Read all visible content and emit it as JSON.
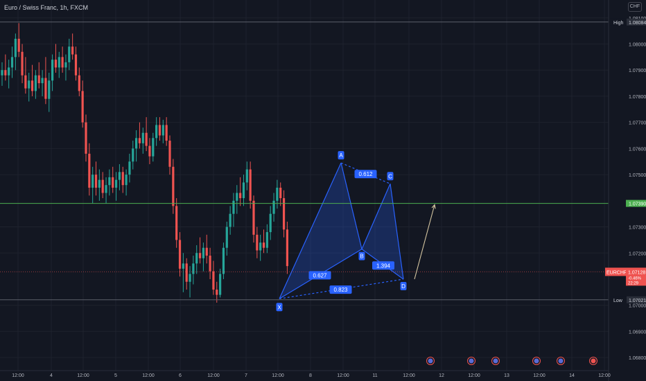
{
  "header": {
    "symbol_title": "Euro / Swiss Franc, 1h, FXCM",
    "currency_button": "CHF"
  },
  "colors": {
    "background": "#131722",
    "grid": "#1e222d",
    "up": "#26a69a",
    "down": "#ef5350",
    "pattern_fill": "#2962ff",
    "pattern_line": "#2962ff",
    "label_bg": "#2962ff",
    "horizontal_level": "#4caf50",
    "projection_arrow": "#d4c5a0",
    "axis_text": "#b2b5be"
  },
  "price_axis": {
    "ticks": [
      "1.08100",
      "1.08000",
      "1.07900",
      "1.07800",
      "1.07700",
      "1.07600",
      "1.07500",
      "1.07300",
      "1.07200",
      "1.07000",
      "1.06900",
      "1.06800"
    ],
    "high_label": "High",
    "high_value": "1.08084",
    "low_label": "Low",
    "low_value": "1.07021",
    "level_value": "1.07390",
    "current_symbol": "EURCHF",
    "current_price": "1.07128",
    "current_change": "-0.46%",
    "countdown": "22:29"
  },
  "time_axis": {
    "labels": [
      "12:00",
      "4",
      "12:00",
      "5",
      "12:00",
      "6",
      "12:00",
      "7",
      "12:00",
      "8",
      "12:00",
      "11",
      "12:00",
      "12",
      "12:00",
      "13",
      "12:00",
      "14",
      "12:00"
    ]
  },
  "pattern": {
    "points": [
      {
        "label": "X",
        "price": 1.07025
      },
      {
        "label": "A",
        "price": 1.07545
      },
      {
        "label": "B",
        "price": 1.07215
      },
      {
        "label": "C",
        "price": 1.07465
      },
      {
        "label": "D",
        "price": 1.071
      }
    ],
    "ratios": {
      "xb": "0.627",
      "ac": "0.612",
      "bd": "1.394",
      "xd": "0.823"
    }
  },
  "events": [
    {
      "type": "economic",
      "icon": "flag-icon"
    },
    {
      "type": "economic",
      "icon": "flag-icon"
    },
    {
      "type": "economic",
      "icon": "flag-icon"
    },
    {
      "type": "economic",
      "icon": "flag-icon"
    },
    {
      "type": "economic",
      "icon": "flag-icon"
    },
    {
      "type": "economic",
      "icon": "alert-icon"
    }
  ],
  "chart_data": {
    "type": "candlestick",
    "title": "Euro / Swiss Franc, 1h, FXCM",
    "ylim": [
      1.0675,
      1.0811
    ],
    "high": 1.08084,
    "low": 1.07021,
    "horizontal_level": 1.0739,
    "last_price": 1.07128,
    "pattern": "harmonic XABCD",
    "candles": [
      [
        1.0788,
        1.0793,
        1.0784,
        1.079
      ],
      [
        1.079,
        1.0796,
        1.0786,
        1.0788
      ],
      [
        1.0788,
        1.0794,
        1.0783,
        1.0791
      ],
      [
        1.0791,
        1.0799,
        1.0787,
        1.0795
      ],
      [
        1.0795,
        1.0804,
        1.079,
        1.0802
      ],
      [
        1.0802,
        1.0808,
        1.0795,
        1.0797
      ],
      [
        1.0797,
        1.08,
        1.0785,
        1.0788
      ],
      [
        1.0788,
        1.0795,
        1.0781,
        1.0783
      ],
      [
        1.0783,
        1.0789,
        1.0778,
        1.0786
      ],
      [
        1.0786,
        1.0792,
        1.078,
        1.0782
      ],
      [
        1.0782,
        1.079,
        1.0779,
        1.0788
      ],
      [
        1.0788,
        1.0793,
        1.0783,
        1.0785
      ],
      [
        1.0785,
        1.079,
        1.078,
        1.0787
      ],
      [
        1.0787,
        1.0795,
        1.0777,
        1.0779
      ],
      [
        1.0779,
        1.0789,
        1.0774,
        1.0786
      ],
      [
        1.0786,
        1.0796,
        1.0782,
        1.0794
      ],
      [
        1.0794,
        1.08,
        1.0789,
        1.0791
      ],
      [
        1.0791,
        1.0797,
        1.0787,
        1.0795
      ],
      [
        1.0795,
        1.0799,
        1.0789,
        1.0791
      ],
      [
        1.0791,
        1.0796,
        1.0786,
        1.0793
      ],
      [
        1.0793,
        1.0802,
        1.079,
        1.0799
      ],
      [
        1.0799,
        1.0804,
        1.0794,
        1.0796
      ],
      [
        1.0796,
        1.0799,
        1.0786,
        1.0788
      ],
      [
        1.0788,
        1.0791,
        1.078,
        1.0782
      ],
      [
        1.0782,
        1.0786,
        1.0768,
        1.077
      ],
      [
        1.077,
        1.0773,
        1.0755,
        1.0758
      ],
      [
        1.0758,
        1.0762,
        1.0742,
        1.0745
      ],
      [
        1.0745,
        1.0753,
        1.0739,
        1.075
      ],
      [
        1.075,
        1.0755,
        1.0742,
        1.0745
      ],
      [
        1.0745,
        1.0752,
        1.074,
        1.0748
      ],
      [
        1.0748,
        1.0751,
        1.0741,
        1.0743
      ],
      [
        1.0743,
        1.0749,
        1.0739,
        1.0746
      ],
      [
        1.0746,
        1.0752,
        1.0742,
        1.0749
      ],
      [
        1.0749,
        1.0753,
        1.0743,
        1.0745
      ],
      [
        1.0745,
        1.0751,
        1.074,
        1.0748
      ],
      [
        1.0748,
        1.0754,
        1.0744,
        1.0751
      ],
      [
        1.0751,
        1.0753,
        1.0743,
        1.0746
      ],
      [
        1.0746,
        1.0752,
        1.0742,
        1.075
      ],
      [
        1.075,
        1.0758,
        1.0747,
        1.0755
      ],
      [
        1.0755,
        1.0763,
        1.0752,
        1.076
      ],
      [
        1.076,
        1.0767,
        1.0755,
        1.0764
      ],
      [
        1.0764,
        1.077,
        1.076,
        1.0762
      ],
      [
        1.0762,
        1.0768,
        1.0758,
        1.0766
      ],
      [
        1.0766,
        1.0772,
        1.0759,
        1.0761
      ],
      [
        1.0761,
        1.0764,
        1.0754,
        1.0757
      ],
      [
        1.0757,
        1.0766,
        1.0755,
        1.0764
      ],
      [
        1.0764,
        1.0772,
        1.0761,
        1.0769
      ],
      [
        1.0769,
        1.0772,
        1.0763,
        1.0765
      ],
      [
        1.0765,
        1.0771,
        1.0762,
        1.0769
      ],
      [
        1.0769,
        1.0772,
        1.0761,
        1.0763
      ],
      [
        1.0763,
        1.0765,
        1.075,
        1.0753
      ],
      [
        1.0753,
        1.0756,
        1.0735,
        1.0738
      ],
      [
        1.0738,
        1.0741,
        1.0722,
        1.0725
      ],
      [
        1.0725,
        1.0728,
        1.0711,
        1.0714
      ],
      [
        1.0714,
        1.072,
        1.0705,
        1.0716
      ],
      [
        1.0716,
        1.0718,
        1.0706,
        1.0709
      ],
      [
        1.0709,
        1.0715,
        1.0703,
        1.0712
      ],
      [
        1.0712,
        1.0719,
        1.0708,
        1.0716
      ],
      [
        1.0716,
        1.0723,
        1.0712,
        1.072
      ],
      [
        1.072,
        1.0726,
        1.0716,
        1.0718
      ],
      [
        1.0718,
        1.0724,
        1.0713,
        1.0722
      ],
      [
        1.0722,
        1.0727,
        1.0716,
        1.0719
      ],
      [
        1.0719,
        1.0722,
        1.071,
        1.0713
      ],
      [
        1.0713,
        1.0717,
        1.0704,
        1.0706
      ],
      [
        1.0706,
        1.0709,
        1.0701,
        1.0704
      ],
      [
        1.0704,
        1.0714,
        1.0703,
        1.0712
      ],
      [
        1.0712,
        1.0724,
        1.071,
        1.0722
      ],
      [
        1.0722,
        1.0732,
        1.0719,
        1.073
      ],
      [
        1.073,
        1.0738,
        1.0727,
        1.0735
      ],
      [
        1.0735,
        1.0743,
        1.073,
        1.074
      ],
      [
        1.074,
        1.0746,
        1.0735,
        1.0743
      ],
      [
        1.0743,
        1.0749,
        1.0738,
        1.0741
      ],
      [
        1.0741,
        1.075,
        1.0738,
        1.0747
      ],
      [
        1.0747,
        1.0755,
        1.0744,
        1.0752
      ],
      [
        1.0752,
        1.0755,
        1.0737,
        1.074
      ],
      [
        1.074,
        1.0742,
        1.0724,
        1.0727
      ],
      [
        1.0727,
        1.073,
        1.0718,
        1.0721
      ],
      [
        1.0721,
        1.0727,
        1.0717,
        1.0724
      ],
      [
        1.0724,
        1.0729,
        1.072,
        1.0722
      ],
      [
        1.0722,
        1.0731,
        1.072,
        1.0728
      ],
      [
        1.0728,
        1.0738,
        1.0725,
        1.0735
      ],
      [
        1.0735,
        1.0743,
        1.0732,
        1.074
      ],
      [
        1.074,
        1.0748,
        1.0737,
        1.0745
      ],
      [
        1.0745,
        1.0747,
        1.0738,
        1.0741
      ],
      [
        1.0741,
        1.0744,
        1.0726,
        1.0729
      ],
      [
        1.0729,
        1.0732,
        1.0712,
        1.0715
      ]
    ]
  }
}
